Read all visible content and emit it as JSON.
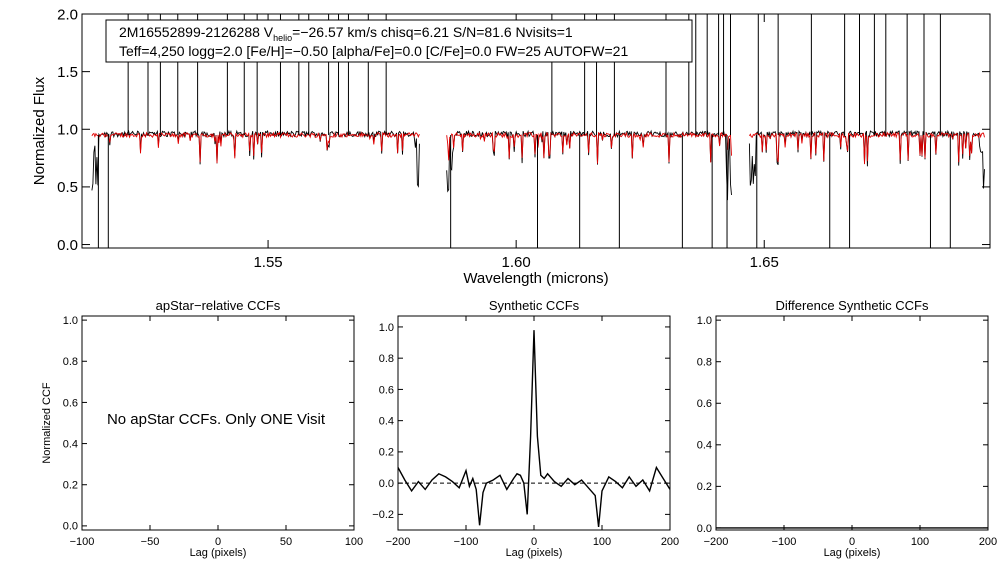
{
  "chart_data": [
    {
      "type": "line",
      "panel": "spectrum",
      "info_line1": {
        "star_id": "2M16552899-2126288",
        "v_prefix": "V",
        "v_sub": "helio",
        "v_value": "=−26.57 km/s",
        "rest": "chisq=6.21  S/N=81.6  Nvisits=1"
      },
      "info_line2": "Teff=4,250 logg=2.0 [Fe/H]=−0.50 [alpha/Fe]=0.0 [C/Fe]=0.0 FW=25 AUTOFW=21",
      "xlabel": "Wavelength (microns)",
      "ylabel": "Normalized Flux",
      "xlim": [
        1.5125,
        1.6955
      ],
      "ylim": [
        -0.03,
        2.0
      ],
      "xticks": [
        1.55,
        1.6,
        1.65
      ],
      "xtick_labels": [
        "1.55",
        "1.60",
        "1.65"
      ],
      "yticks": [
        0.0,
        0.5,
        1.0,
        1.5,
        2.0
      ],
      "ytick_labels": [
        "0.0",
        "0.5",
        "1.0",
        "1.5",
        "2.0"
      ],
      "chips": [
        {
          "start": 1.5145,
          "end": 1.5805
        },
        {
          "start": 1.586,
          "end": 1.6435
        },
        {
          "start": 1.647,
          "end": 1.6945
        }
      ],
      "series": [
        {
          "name": "observed",
          "color": "#000000"
        },
        {
          "name": "model",
          "color": "#e00000"
        }
      ],
      "emission_spikes": [
        1.5218,
        1.5258,
        1.5283,
        1.5318,
        1.5358,
        1.5418,
        1.5452,
        1.5478,
        1.5525,
        1.5562,
        1.5582,
        1.5622,
        1.5642,
        1.5662,
        1.5702,
        1.5738,
        1.6072,
        1.6138,
        1.6162,
        1.6198,
        1.6302,
        1.6348,
        1.6362,
        1.6385,
        1.6408,
        1.6418,
        1.6432,
        1.6488,
        1.6528,
        1.6595,
        1.6662,
        1.6692,
        1.6722,
        1.6745,
        1.6788,
        1.6822,
        1.6855
      ],
      "absorption_dips": [
        1.5158,
        1.5178,
        1.5868,
        1.6043,
        1.6128,
        1.6208,
        1.6335,
        1.6395,
        1.6425,
        1.6485,
        1.6632,
        1.6672,
        1.6835,
        1.6875
      ]
    },
    {
      "type": "line",
      "panel": "ccf-apstar",
      "title": "apStar−relative CCFs",
      "xlabel": "Lag (pixels)",
      "ylabel": "Normalized CCF",
      "message": "No apStar CCFs.  Only ONE Visit",
      "xlim": [
        -100,
        100
      ],
      "ylim": [
        -0.02,
        1.02
      ],
      "xticks": [
        -100,
        -50,
        0,
        50,
        100
      ],
      "xtick_labels": [
        "−100",
        "−50",
        "0",
        "50",
        "100"
      ],
      "yticks": [
        0.0,
        0.2,
        0.4,
        0.6,
        0.8,
        1.0
      ],
      "ytick_labels": [
        "0.0",
        "0.2",
        "0.4",
        "0.6",
        "0.8",
        "1.0"
      ]
    },
    {
      "type": "line",
      "panel": "ccf-synthetic",
      "title": "Synthetic CCFs",
      "xlabel": "Lag (pixels)",
      "xlim": [
        -200,
        200
      ],
      "ylim": [
        -0.3,
        1.07
      ],
      "xticks": [
        -200,
        -100,
        0,
        100,
        200
      ],
      "xtick_labels": [
        "−200",
        "−100",
        "0",
        "100",
        "200"
      ],
      "yticks": [
        -0.2,
        0.0,
        0.2,
        0.4,
        0.6,
        0.8,
        1.0
      ],
      "ytick_labels": [
        "−0.2",
        "0.0",
        "0.2",
        "0.4",
        "0.6",
        "0.8",
        "1.0"
      ],
      "zero_line": "dashed",
      "x": [
        -200,
        -190,
        -180,
        -170,
        -160,
        -150,
        -140,
        -130,
        -120,
        -110,
        -100,
        -95,
        -90,
        -85,
        -80,
        -75,
        -70,
        -60,
        -50,
        -40,
        -30,
        -25,
        -20,
        -15,
        -10,
        -5,
        0,
        5,
        10,
        15,
        20,
        30,
        40,
        50,
        60,
        70,
        80,
        90,
        95,
        100,
        110,
        120,
        130,
        140,
        150,
        160,
        170,
        180,
        190,
        200
      ],
      "y": [
        0.1,
        0.02,
        -0.05,
        0.01,
        -0.04,
        0.02,
        0.06,
        0.04,
        0.01,
        -0.03,
        0.08,
        -0.02,
        0.03,
        -0.04,
        -0.27,
        -0.06,
        0.0,
        0.02,
        0.05,
        -0.04,
        0.03,
        0.06,
        0.05,
        0.0,
        -0.2,
        0.3,
        0.98,
        0.3,
        0.05,
        0.03,
        0.06,
        0.01,
        -0.02,
        0.03,
        -0.01,
        0.02,
        -0.03,
        -0.08,
        -0.28,
        -0.05,
        0.04,
        0.01,
        -0.03,
        0.04,
        -0.02,
        0.02,
        -0.05,
        0.1,
        0.03,
        -0.04
      ]
    },
    {
      "type": "line",
      "panel": "ccf-difference",
      "title": "Difference Synthetic CCFs",
      "xlabel": "Lag (pixels)",
      "xlim": [
        -200,
        200
      ],
      "ylim": [
        -0.01,
        1.02
      ],
      "xticks": [
        -200,
        -100,
        0,
        100,
        200
      ],
      "xtick_labels": [
        "−200",
        "−100",
        "0",
        "100",
        "200"
      ],
      "yticks": [
        0.0,
        0.2,
        0.4,
        0.6,
        0.8,
        1.0
      ],
      "ytick_labels": [
        "0.0",
        "0.2",
        "0.4",
        "0.6",
        "0.8",
        "1.0"
      ],
      "x": [
        -200,
        200
      ],
      "y": [
        0.0,
        0.0
      ]
    }
  ]
}
